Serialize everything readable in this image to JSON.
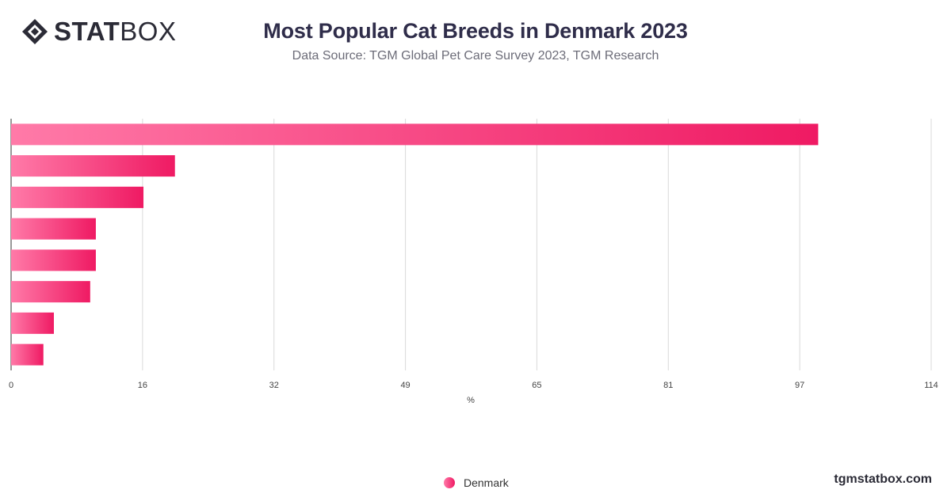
{
  "brand": {
    "logo_bold": "STAT",
    "logo_light": "BOX",
    "site": "tgmstatbox.com"
  },
  "chart_data": {
    "type": "bar",
    "orientation": "horizontal",
    "title": "Most Popular Cat Breeds in Denmark 2023",
    "subtitle": "Data Source: TGM Global Pet Care Survey 2023, TGM Research",
    "xlabel": "%",
    "ylabel": "",
    "xlim": [
      0,
      114
    ],
    "x_ticks": [
      "0",
      "16",
      "32",
      "49",
      "65",
      "81",
      "97",
      "114"
    ],
    "categories": [
      "",
      "",
      "",
      "",
      "",
      "",
      "",
      ""
    ],
    "series": [
      {
        "name": "Denmark",
        "values": [
          100,
          20.3,
          16.4,
          10.5,
          10.5,
          9.8,
          5.3,
          4.0
        ]
      }
    ],
    "grid": true,
    "legend_position": "bottom",
    "colors": {
      "bar_start": "#ff7aa8",
      "bar_end": "#ef1a63",
      "grid": "#d9d9d9",
      "axis": "#333333"
    }
  }
}
